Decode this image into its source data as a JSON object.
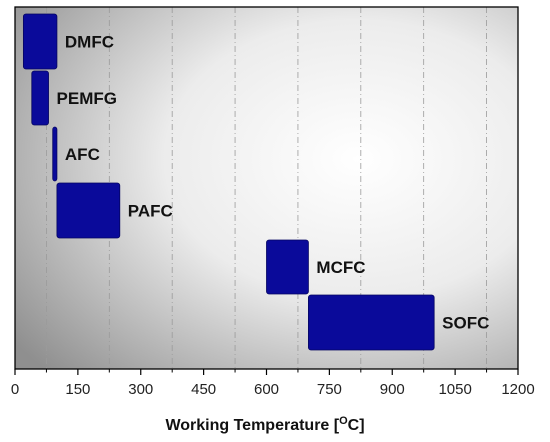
{
  "chart_data": {
    "type": "bar",
    "orientation": "horizontal-range",
    "xlabel": "Working Temperature [",
    "xlabel_sup": "O",
    "xlabel_tail": "C]",
    "xlim": [
      0,
      1200
    ],
    "ticks": [
      "0",
      "150",
      "300",
      "450",
      "600",
      "750",
      "900",
      "1050",
      "1200"
    ],
    "grid": "vertical dash-dot",
    "bar_color": "#0a0a9a",
    "bars": [
      {
        "name": "DMFC",
        "start": 20,
        "end": 100
      },
      {
        "name": "PEMFG",
        "start": 40,
        "end": 80
      },
      {
        "name": "AFC",
        "start": 90,
        "end": 100
      },
      {
        "name": "PAFC",
        "start": 100,
        "end": 250
      },
      {
        "name": "MCFC",
        "start": 600,
        "end": 700
      },
      {
        "name": "SOFC",
        "start": 700,
        "end": 1000
      }
    ]
  }
}
